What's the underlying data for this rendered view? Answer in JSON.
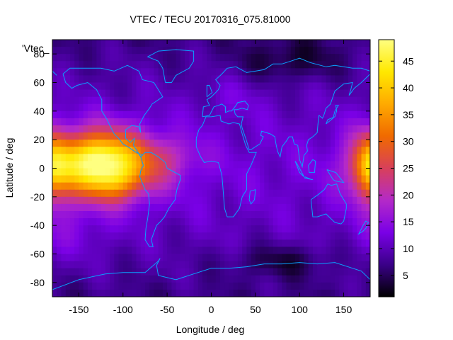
{
  "chart_data": {
    "type": "heatmap",
    "title": "VTEC / TECU 20170316_075.81000",
    "xlabel": "Longitude / deg",
    "ylabel": "Latitude / deg",
    "legend_label": "'Vtec_",
    "xlim": [
      -180,
      180
    ],
    "ylim": [
      -90,
      90
    ],
    "x_ticks": [
      -150,
      -100,
      -50,
      0,
      50,
      100,
      150
    ],
    "y_ticks": [
      -80,
      -60,
      -40,
      -20,
      0,
      20,
      40,
      60,
      80
    ],
    "colorbar": {
      "range": [
        1,
        49
      ],
      "ticks": [
        5,
        10,
        15,
        20,
        25,
        30,
        35,
        40,
        45
      ],
      "palette": [
        "#000000",
        "#3a0088",
        "#7a00e6",
        "#b42ac8",
        "#d8405a",
        "#f06a00",
        "#ffaa00",
        "#ffe800",
        "#ffff80"
      ]
    },
    "features": [
      {
        "lon": -125,
        "lat": 3,
        "sigma_lon": 42,
        "sigma_lat": 16,
        "peak": 36
      },
      {
        "lon": 180,
        "lat": 0,
        "sigma_lon": 14,
        "sigma_lat": 16,
        "peak": 18
      },
      {
        "lon": -110,
        "lat": -10,
        "sigma_lon": 22,
        "sigma_lat": 9,
        "peak": 6
      },
      {
        "lon": -125,
        "lat": 10,
        "sigma_lon": 18,
        "sigma_lat": 8,
        "peak": 4
      },
      {
        "lon": -40,
        "lat": 8,
        "sigma_lon": 25,
        "sigma_lat": 10,
        "peak": 4
      },
      {
        "lon": 25,
        "lat": 50,
        "sigma_lon": 25,
        "sigma_lat": 10,
        "peak": 2
      },
      {
        "lon": 90,
        "lat": 75,
        "sigma_lon": 40,
        "sigma_lat": 10,
        "peak": -5
      },
      {
        "lon": 80,
        "lat": -65,
        "sigma_lon": 40,
        "sigma_lat": 8,
        "peak": -5
      },
      {
        "lon": -160,
        "lat": -45,
        "sigma_lon": 30,
        "sigma_lat": 15,
        "peak": 3
      }
    ],
    "base_value": 12,
    "coastline_color": "#0aa0ff",
    "grid": false
  }
}
